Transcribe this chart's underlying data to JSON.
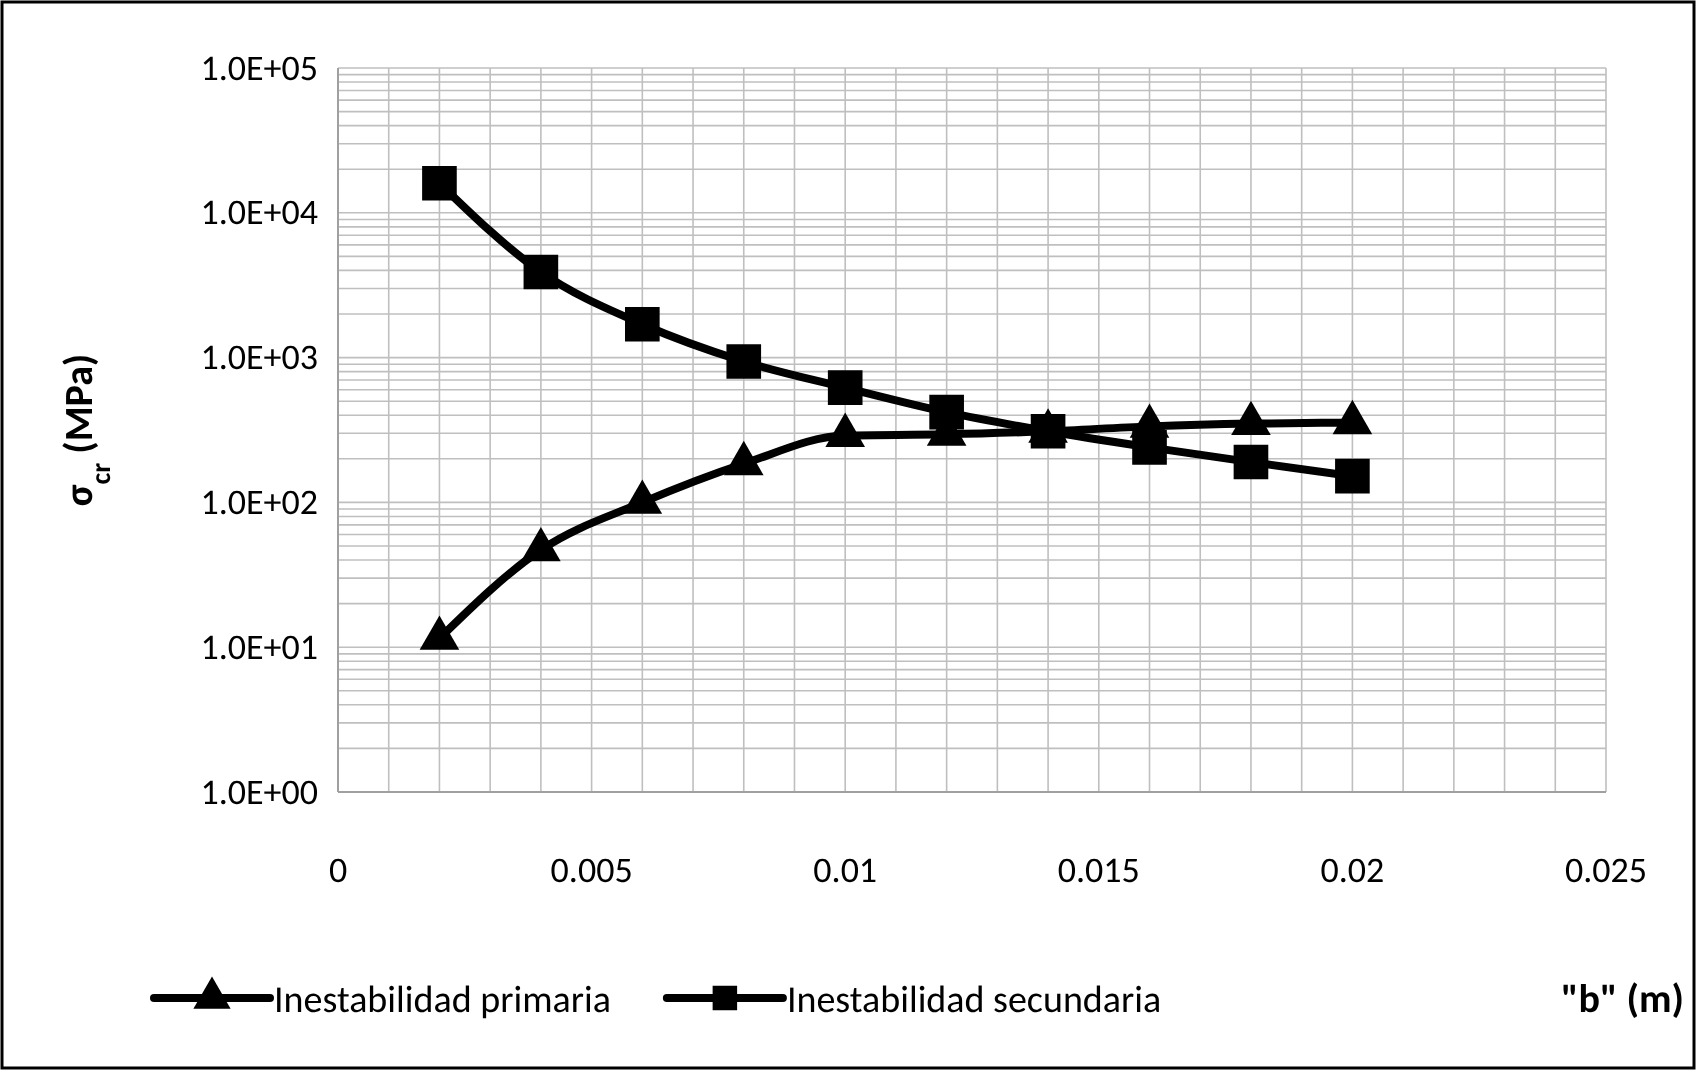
{
  "chart_data": {
    "type": "line",
    "xlabel": "\"b\" (m)",
    "ylabel": "σ$_{cr}$ (MPa)",
    "x": [
      0.002,
      0.004,
      0.006,
      0.008,
      0.01,
      0.012,
      0.014,
      0.016,
      0.018,
      0.02
    ],
    "series": [
      {
        "name": "Inestabilidad primaria",
        "color": "#000000",
        "marker": "triangle",
        "values": [
          11.5,
          47,
          100,
          185,
          290,
          295,
          310,
          335,
          350,
          355
        ]
      },
      {
        "name": "Inestabilidad secundaria",
        "color": "#000000",
        "marker": "square",
        "values": [
          16000,
          3900,
          1700,
          940,
          620,
          420,
          310,
          240,
          190,
          152
        ]
      }
    ],
    "log": "y",
    "xlim": [
      0,
      0.025
    ],
    "xticks": [
      0,
      0.005,
      0.01,
      0.015,
      0.02,
      0.025
    ],
    "ylim": [
      1,
      100000
    ],
    "yticks": [
      {
        "value": 1,
        "label": "1.0E+00"
      },
      {
        "value": 10,
        "label": "1.0E+01"
      },
      {
        "value": 100,
        "label": "1.0E+02"
      },
      {
        "value": 1000,
        "label": "1.0E+03"
      },
      {
        "value": 10000,
        "label": "1.0E+04"
      },
      {
        "value": 100000,
        "label": "1.0E+05"
      }
    ],
    "grid": true,
    "legend": "bottom",
    "line_style": "solid"
  }
}
